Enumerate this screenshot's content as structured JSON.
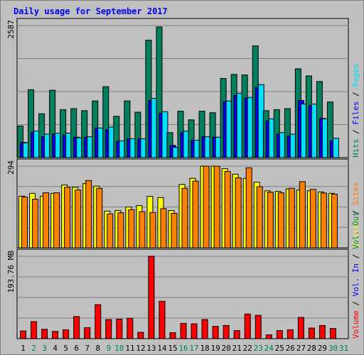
{
  "chart_data": {
    "type": "bar",
    "title": "Daily usage for September 2017",
    "categories": [
      "1",
      "2",
      "3",
      "4",
      "5",
      "6",
      "7",
      "8",
      "9",
      "10",
      "11",
      "12",
      "13",
      "14",
      "15",
      "16",
      "17",
      "18",
      "19",
      "20",
      "21",
      "22",
      "23",
      "24",
      "25",
      "26",
      "27",
      "28",
      "29",
      "30",
      "31"
    ],
    "weekend_days": [
      "2",
      "3",
      "9",
      "10",
      "16",
      "17",
      "23",
      "24",
      "30",
      "31"
    ],
    "colors": {
      "hits": "#00805c",
      "files": "#0000ff",
      "pages": "#00e0ff",
      "visits": "#ffff00",
      "sites": "#ff8000",
      "volume": "#ff0000",
      "title": "#0000ff",
      "weekday_label": "#000000",
      "weekend_label": "#00805c"
    },
    "panels": [
      {
        "id": "hits-files-pages",
        "scale_label": "2587",
        "ylim": [
          0,
          2587
        ],
        "legend": [
          {
            "text": "Hits",
            "color": "#00805c"
          },
          {
            "text": "Files",
            "color": "#0000ff"
          },
          {
            "text": "Pages",
            "color": "#00e0ff"
          }
        ],
        "series": [
          {
            "name": "Hits",
            "color": "#00805c",
            "values": [
              620,
              1330,
              860,
              1320,
              940,
              960,
              920,
              1110,
              1390,
              810,
              1110,
              890,
              2300,
              2560,
              490,
              910,
              740,
              910,
              880,
              1550,
              1630,
              1620,
              2190,
              920,
              940,
              960,
              1740,
              1600,
              1490,
              1090,
              0
            ]
          },
          {
            "name": "Files",
            "color": "#0000ff",
            "values": [
              300,
              500,
              410,
              460,
              440,
              400,
              400,
              580,
              550,
              320,
              370,
              370,
              1120,
              870,
              240,
              490,
              340,
              410,
              400,
              1100,
              1220,
              1170,
              1370,
              720,
              460,
              420,
              1120,
              1020,
              770,
              330,
              0
            ]
          },
          {
            "name": "Pages",
            "color": "#00e0ff",
            "values": [
              290,
              520,
              460,
              480,
              480,
              390,
              410,
              580,
              600,
              330,
              370,
              370,
              1160,
              900,
              200,
              520,
              340,
              410,
              400,
              1110,
              1260,
              1180,
              1430,
              760,
              490,
              460,
              1050,
              1050,
              760,
              380,
              0
            ]
          }
        ]
      },
      {
        "id": "visits-sites",
        "scale_label": "294",
        "ylim": [
          0,
          294
        ],
        "legend": [
          {
            "text": "Visits",
            "color": "#ffff00"
          },
          {
            "text": "Sites",
            "color": "#ff8000"
          }
        ],
        "series": [
          {
            "name": "Visits",
            "color": "#ffff00",
            "values": [
              186,
              196,
              186,
              196,
              226,
              218,
              231,
              222,
              132,
              134,
              147,
              152,
              185,
              181,
              134,
              228,
              250,
              295,
              294,
              285,
              265,
              250,
              236,
              205,
              203,
              212,
              208,
              205,
              201,
              196,
              0
            ]
          },
          {
            "name": "Sites",
            "color": "#ff8000",
            "values": [
              183,
              175,
              198,
              198,
              218,
              208,
              242,
              214,
              122,
              126,
              137,
              130,
              127,
              141,
              124,
              214,
              240,
              295,
              295,
              275,
              252,
              288,
              220,
              200,
              198,
              214,
              238,
              210,
              197,
              193,
              0
            ]
          }
        ]
      },
      {
        "id": "volume",
        "scale_label": "193.76 MB",
        "ylim": [
          0,
          193.76
        ],
        "legend": [
          {
            "text": "Volume",
            "color": "#ff0000"
          },
          {
            "text": "Vol. In",
            "color": "#0000ff"
          },
          {
            "text": "Vol. Out",
            "color": "#00805c"
          }
        ],
        "series": [
          {
            "name": "Volume",
            "color": "#ff0000",
            "values": [
              18,
              40,
              22,
              17,
              21,
              52,
              26,
              80,
              45,
              46,
              48,
              15,
              194,
              88,
              14,
              36,
              35,
              45,
              29,
              31,
              19,
              58,
              55,
              9,
              19,
              21,
              50,
              25,
              31,
              24,
              0
            ]
          }
        ]
      }
    ]
  }
}
